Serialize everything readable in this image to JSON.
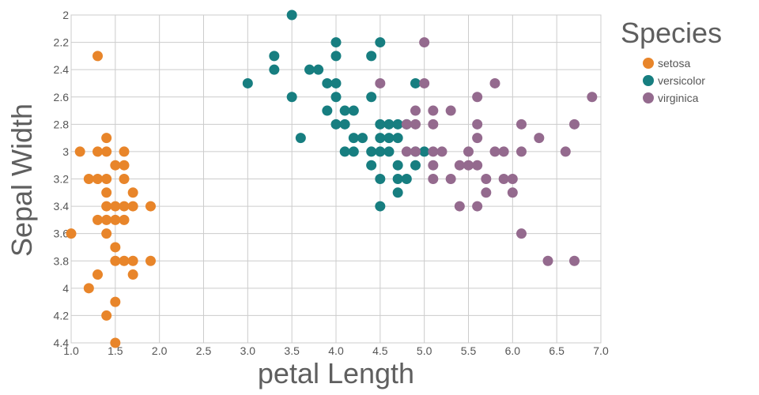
{
  "chart_data": {
    "type": "scatter",
    "title": "",
    "xlabel": "petal Length",
    "ylabel": "Sepal Width",
    "xlim": [
      1.0,
      7.0
    ],
    "ylim": [
      2.0,
      4.4
    ],
    "y_inverted": true,
    "grid": true,
    "x_ticks": [
      "1.0",
      "1.5",
      "2.0",
      "2.5",
      "3.0",
      "3.5",
      "4.0",
      "4.5",
      "5.0",
      "5.5",
      "6.0",
      "6.5",
      "7.0"
    ],
    "y_ticks": [
      "2",
      "2.2",
      "2.4",
      "2.6",
      "2.8",
      "3",
      "3.2",
      "3.4",
      "3.6",
      "3.8",
      "4",
      "4.2",
      "4.4"
    ],
    "legend": {
      "title": "Species",
      "placement": "right"
    },
    "series": [
      {
        "name": "setosa",
        "color": "#e8852a",
        "points": [
          [
            1.3,
            2.3
          ],
          [
            1.1,
            3.0
          ],
          [
            1.3,
            3.0
          ],
          [
            1.4,
            3.0
          ],
          [
            1.6,
            3.0
          ],
          [
            1.4,
            2.9
          ],
          [
            1.5,
            3.1
          ],
          [
            1.6,
            3.1
          ],
          [
            1.2,
            3.2
          ],
          [
            1.3,
            3.2
          ],
          [
            1.4,
            3.2
          ],
          [
            1.6,
            3.2
          ],
          [
            1.4,
            3.3
          ],
          [
            1.7,
            3.3
          ],
          [
            1.4,
            3.4
          ],
          [
            1.5,
            3.4
          ],
          [
            1.6,
            3.4
          ],
          [
            1.7,
            3.4
          ],
          [
            1.9,
            3.4
          ],
          [
            1.3,
            3.5
          ],
          [
            1.4,
            3.5
          ],
          [
            1.5,
            3.5
          ],
          [
            1.6,
            3.5
          ],
          [
            1.0,
            3.6
          ],
          [
            1.4,
            3.6
          ],
          [
            1.5,
            3.7
          ],
          [
            1.5,
            3.8
          ],
          [
            1.6,
            3.8
          ],
          [
            1.7,
            3.8
          ],
          [
            1.9,
            3.8
          ],
          [
            1.3,
            3.9
          ],
          [
            1.7,
            3.9
          ],
          [
            1.2,
            4.0
          ],
          [
            1.5,
            4.1
          ],
          [
            1.4,
            4.2
          ],
          [
            1.5,
            4.4
          ]
        ]
      },
      {
        "name": "versicolor",
        "color": "#177e80",
        "points": [
          [
            3.5,
            2.0
          ],
          [
            4.0,
            2.2
          ],
          [
            4.5,
            2.2
          ],
          [
            3.3,
            2.3
          ],
          [
            4.0,
            2.3
          ],
          [
            4.4,
            2.3
          ],
          [
            3.3,
            2.4
          ],
          [
            3.7,
            2.4
          ],
          [
            3.8,
            2.4
          ],
          [
            3.0,
            2.5
          ],
          [
            3.9,
            2.5
          ],
          [
            4.0,
            2.5
          ],
          [
            4.9,
            2.5
          ],
          [
            3.5,
            2.6
          ],
          [
            4.0,
            2.6
          ],
          [
            4.4,
            2.6
          ],
          [
            3.9,
            2.7
          ],
          [
            4.1,
            2.7
          ],
          [
            4.2,
            2.7
          ],
          [
            4.0,
            2.8
          ],
          [
            4.1,
            2.8
          ],
          [
            4.5,
            2.8
          ],
          [
            4.6,
            2.8
          ],
          [
            4.7,
            2.8
          ],
          [
            4.8,
            2.8
          ],
          [
            3.6,
            2.9
          ],
          [
            4.2,
            2.9
          ],
          [
            4.3,
            2.9
          ],
          [
            4.5,
            2.9
          ],
          [
            4.6,
            2.9
          ],
          [
            4.7,
            2.9
          ],
          [
            4.1,
            3.0
          ],
          [
            4.2,
            3.0
          ],
          [
            4.4,
            3.0
          ],
          [
            4.5,
            3.0
          ],
          [
            4.6,
            3.0
          ],
          [
            4.9,
            3.0
          ],
          [
            5.0,
            3.0
          ],
          [
            4.4,
            3.1
          ],
          [
            4.7,
            3.1
          ],
          [
            4.9,
            3.1
          ],
          [
            4.5,
            3.2
          ],
          [
            4.7,
            3.2
          ],
          [
            4.8,
            3.2
          ],
          [
            4.7,
            3.3
          ],
          [
            4.5,
            3.4
          ]
        ]
      },
      {
        "name": "virginica",
        "color": "#946a8e",
        "points": [
          [
            5.0,
            2.2
          ],
          [
            4.5,
            2.5
          ],
          [
            5.0,
            2.5
          ],
          [
            5.8,
            2.5
          ],
          [
            5.6,
            2.6
          ],
          [
            6.9,
            2.6
          ],
          [
            4.9,
            2.7
          ],
          [
            5.1,
            2.7
          ],
          [
            5.3,
            2.7
          ],
          [
            4.8,
            2.8
          ],
          [
            4.9,
            2.8
          ],
          [
            5.1,
            2.8
          ],
          [
            5.6,
            2.8
          ],
          [
            6.1,
            2.8
          ],
          [
            6.7,
            2.8
          ],
          [
            5.6,
            2.9
          ],
          [
            6.3,
            2.9
          ],
          [
            4.8,
            3.0
          ],
          [
            4.9,
            3.0
          ],
          [
            5.1,
            3.0
          ],
          [
            5.2,
            3.0
          ],
          [
            5.5,
            3.0
          ],
          [
            5.8,
            3.0
          ],
          [
            5.9,
            3.0
          ],
          [
            6.1,
            3.0
          ],
          [
            6.6,
            3.0
          ],
          [
            5.1,
            3.1
          ],
          [
            5.4,
            3.1
          ],
          [
            5.5,
            3.1
          ],
          [
            5.6,
            3.1
          ],
          [
            5.1,
            3.2
          ],
          [
            5.3,
            3.2
          ],
          [
            5.7,
            3.2
          ],
          [
            5.9,
            3.2
          ],
          [
            6.0,
            3.2
          ],
          [
            5.7,
            3.3
          ],
          [
            6.0,
            3.3
          ],
          [
            5.4,
            3.4
          ],
          [
            5.6,
            3.4
          ],
          [
            6.1,
            3.6
          ],
          [
            6.4,
            3.8
          ],
          [
            6.7,
            3.8
          ]
        ]
      }
    ]
  }
}
